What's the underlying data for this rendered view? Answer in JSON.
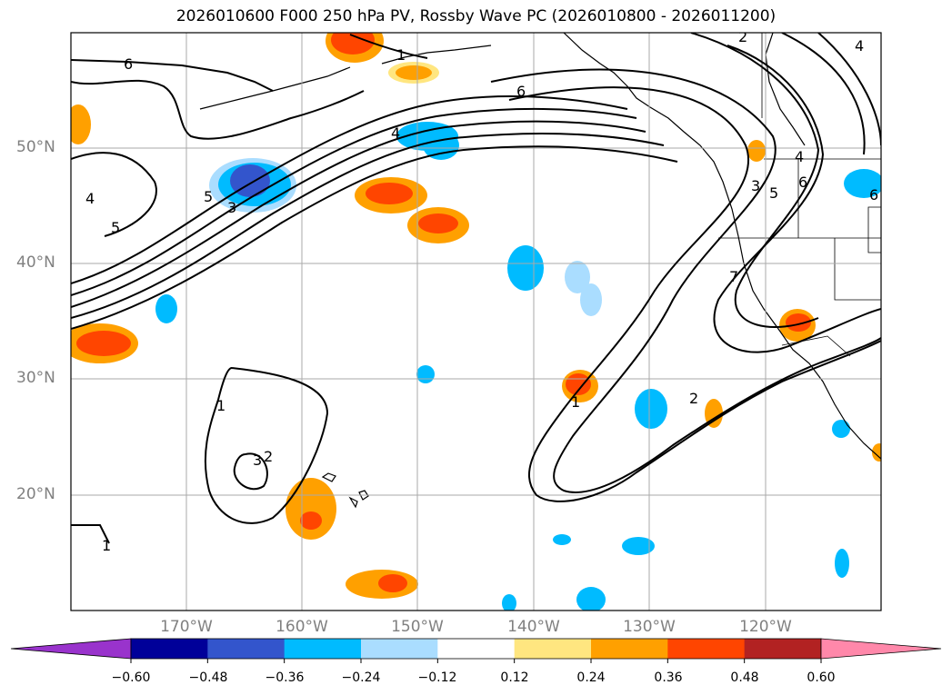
{
  "title": "2026010600 F000 250 hPa PV, Rossby Wave PC (2026010800 - 2026011200)",
  "lat_labels": [
    "50°N",
    "40°N",
    "30°N",
    "20°N"
  ],
  "lon_labels": [
    "170°W",
    "160°W",
    "150°W",
    "140°W",
    "130°W",
    "120°W"
  ],
  "colorbar": {
    "ticks": [
      "−0.60",
      "−0.48",
      "−0.36",
      "−0.24",
      "−0.12",
      "0.12",
      "0.24",
      "0.36",
      "0.48",
      "0.60"
    ],
    "colors": [
      "#9933cc",
      "#000099",
      "#3355cc",
      "#00bbff",
      "#aaddff",
      "#ffffff",
      "#ffe680",
      "#ffa000",
      "#ff4500",
      "#b22222",
      "#ff88aa"
    ]
  },
  "contour_labels": [
    {
      "id": "c6a",
      "text": "6"
    },
    {
      "id": "c6b",
      "text": "6"
    },
    {
      "id": "c2a",
      "text": "2"
    },
    {
      "id": "c4a",
      "text": "4"
    },
    {
      "id": "c1a",
      "text": "1"
    },
    {
      "id": "c4b",
      "text": "4"
    },
    {
      "id": "c5a",
      "text": "5"
    },
    {
      "id": "c3a",
      "text": "3"
    },
    {
      "id": "c4c",
      "text": "4"
    },
    {
      "id": "c5b",
      "text": "5"
    },
    {
      "id": "c1b",
      "text": "1"
    },
    {
      "id": "c3b",
      "text": "3"
    },
    {
      "id": "c2b",
      "text": "2"
    },
    {
      "id": "c1c",
      "text": "1"
    },
    {
      "id": "c2c",
      "text": "2"
    },
    {
      "id": "c1d",
      "text": "1"
    },
    {
      "id": "c3c",
      "text": "3"
    },
    {
      "id": "c5c",
      "text": "5"
    },
    {
      "id": "c6c",
      "text": "6"
    },
    {
      "id": "c4d",
      "text": "4"
    },
    {
      "id": "c7a",
      "text": "7"
    },
    {
      "id": "c6d",
      "text": "6"
    }
  ]
}
